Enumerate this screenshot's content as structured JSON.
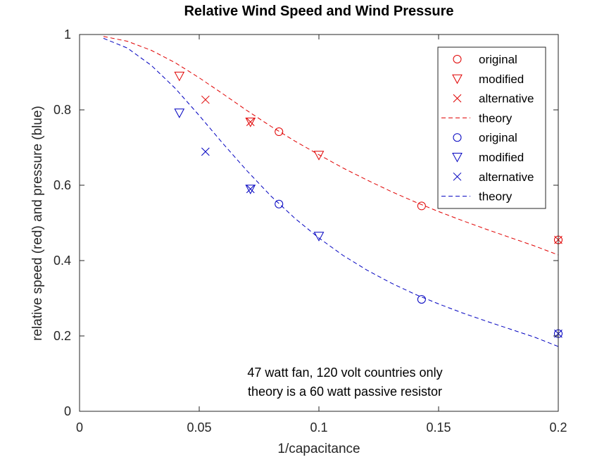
{
  "chart_data": {
    "type": "scatter",
    "title": "Relative Wind Speed and Wind Pressure",
    "xlabel": "1/capacitance",
    "ylabel": "relative speed (red) and pressure (blue)",
    "xlim": [
      0,
      0.2
    ],
    "ylim": [
      0,
      1
    ],
    "x_ticks": [
      0,
      0.05,
      0.1,
      0.15,
      0.2
    ],
    "x_tick_labels": [
      "0",
      "0.05",
      "0.1",
      "0.15",
      "0.2"
    ],
    "y_ticks": [
      0,
      0.2,
      0.4,
      0.6,
      0.8,
      1
    ],
    "y_tick_labels": [
      "0",
      "0.2",
      "0.4",
      "0.6",
      "0.8",
      "1"
    ],
    "grid": false,
    "legend_position": "top-right",
    "colors": {
      "red": "#e00000",
      "blue": "#0000c0",
      "axis": "#262626"
    },
    "series": [
      {
        "name": "original",
        "color": "red",
        "marker": "circle",
        "x": [
          0.0833,
          0.1429,
          0.2
        ],
        "y": [
          0.742,
          0.545,
          0.455
        ]
      },
      {
        "name": "modified",
        "color": "red",
        "marker": "triangle-down",
        "x": [
          0.0417,
          0.0714,
          0.1
        ],
        "y": [
          0.89,
          0.768,
          0.68
        ]
      },
      {
        "name": "alternative",
        "color": "red",
        "marker": "x",
        "x": [
          0.0526,
          0.0714,
          0.2
        ],
        "y": [
          0.827,
          0.768,
          0.455
        ]
      },
      {
        "name": "theory",
        "color": "red",
        "marker": "dashed-line",
        "x": [
          0.01,
          0.02,
          0.03,
          0.04,
          0.05,
          0.06,
          0.07,
          0.08,
          0.09,
          0.1,
          0.11,
          0.12,
          0.13,
          0.14,
          0.15,
          0.16,
          0.17,
          0.18,
          0.19,
          0.2
        ],
        "y": [
          0.995,
          0.982,
          0.958,
          0.925,
          0.885,
          0.842,
          0.798,
          0.756,
          0.717,
          0.681,
          0.646,
          0.614,
          0.584,
          0.556,
          0.53,
          0.506,
          0.483,
          0.461,
          0.439,
          0.415
        ]
      },
      {
        "name": "original",
        "color": "blue",
        "marker": "circle",
        "x": [
          0.0833,
          0.1429,
          0.2
        ],
        "y": [
          0.55,
          0.297,
          0.206
        ]
      },
      {
        "name": "modified",
        "color": "blue",
        "marker": "triangle-down",
        "x": [
          0.0417,
          0.0714,
          0.1
        ],
        "y": [
          0.792,
          0.59,
          0.465
        ]
      },
      {
        "name": "alternative",
        "color": "blue",
        "marker": "x",
        "x": [
          0.0526,
          0.0714,
          0.2
        ],
        "y": [
          0.689,
          0.59,
          0.206
        ]
      },
      {
        "name": "theory",
        "color": "blue",
        "marker": "dashed-line",
        "x": [
          0.01,
          0.02,
          0.03,
          0.04,
          0.05,
          0.06,
          0.07,
          0.08,
          0.09,
          0.1,
          0.11,
          0.12,
          0.13,
          0.14,
          0.15,
          0.16,
          0.17,
          0.18,
          0.19,
          0.2
        ],
        "y": [
          0.99,
          0.964,
          0.918,
          0.857,
          0.785,
          0.71,
          0.638,
          0.571,
          0.512,
          0.46,
          0.414,
          0.375,
          0.341,
          0.311,
          0.285,
          0.261,
          0.239,
          0.218,
          0.197,
          0.172
        ]
      }
    ],
    "annotations": [
      "47 watt fan, 120 volt countries only",
      "theory is a 60 watt passive resistor"
    ]
  }
}
